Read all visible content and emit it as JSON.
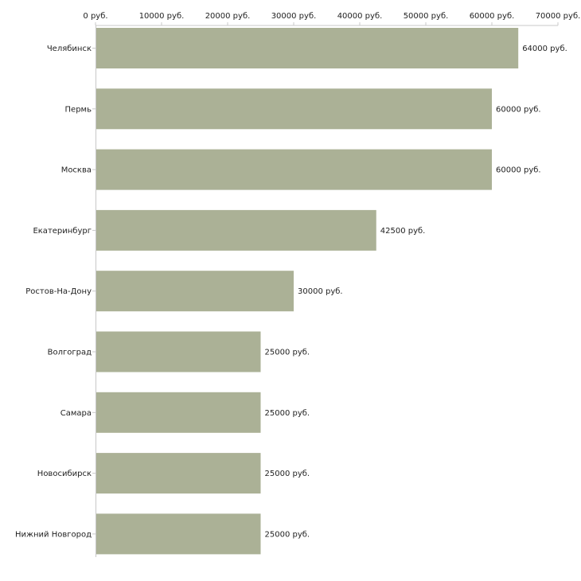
{
  "chart_data": {
    "type": "bar",
    "orientation": "horizontal",
    "title": "",
    "xlabel": "",
    "ylabel": "",
    "xlim": [
      0,
      70000
    ],
    "grid": false,
    "legend": "none",
    "bar_color": "#abb196",
    "axis_color": "#c8c8c8",
    "text_color": "#222222",
    "unit_suffix": " руб.",
    "x_ticks": [
      {
        "value": 0,
        "label": "0 руб."
      },
      {
        "value": 10000,
        "label": "10000 руб."
      },
      {
        "value": 20000,
        "label": "20000 руб."
      },
      {
        "value": 30000,
        "label": "30000 руб."
      },
      {
        "value": 40000,
        "label": "40000 руб."
      },
      {
        "value": 50000,
        "label": "50000 руб."
      },
      {
        "value": 60000,
        "label": "60000 руб."
      },
      {
        "value": 70000,
        "label": "70000 руб."
      }
    ],
    "categories": [
      "Челябинск",
      "Пермь",
      "Москва",
      "Екатеринбург",
      "Ростов-На-Дону",
      "Волгоград",
      "Самара",
      "Новосибирск",
      "Нижний Новгород"
    ],
    "values": [
      64000,
      60000,
      60000,
      42500,
      30000,
      25000,
      25000,
      25000,
      25000
    ],
    "data_labels": [
      "64000 руб.",
      "60000 руб.",
      "60000 руб.",
      "42500 руб.",
      "30000 руб.",
      "25000 руб.",
      "25000 руб.",
      "25000 руб.",
      "25000 руб."
    ]
  }
}
